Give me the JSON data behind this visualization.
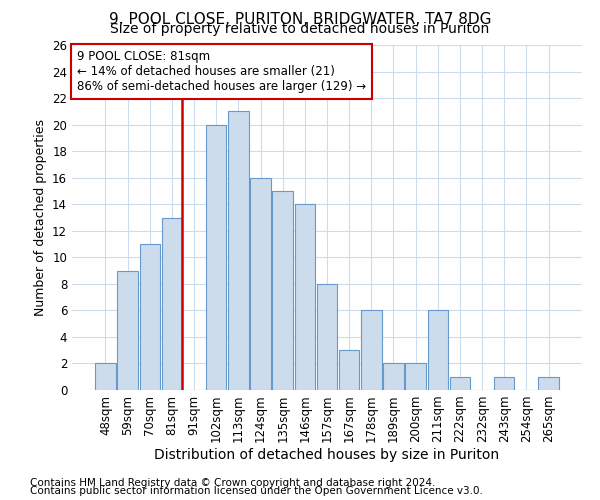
{
  "title1": "9, POOL CLOSE, PURITON, BRIDGWATER, TA7 8DG",
  "title2": "Size of property relative to detached houses in Puriton",
  "xlabel": "Distribution of detached houses by size in Puriton",
  "ylabel": "Number of detached properties",
  "categories": [
    "48sqm",
    "59sqm",
    "70sqm",
    "81sqm",
    "91sqm",
    "102sqm",
    "113sqm",
    "124sqm",
    "135sqm",
    "146sqm",
    "157sqm",
    "167sqm",
    "178sqm",
    "189sqm",
    "200sqm",
    "211sqm",
    "222sqm",
    "232sqm",
    "243sqm",
    "254sqm",
    "265sqm"
  ],
  "values": [
    2,
    9,
    11,
    13,
    0,
    20,
    21,
    16,
    15,
    14,
    8,
    3,
    6,
    2,
    2,
    6,
    1,
    0,
    1,
    0,
    1
  ],
  "bar_color": "#ccdcec",
  "bar_edge_color": "#6699cc",
  "property_line_index": 3,
  "property_line_color": "#cc0000",
  "annotation_line1": "9 POOL CLOSE: 81sqm",
  "annotation_line2": "← 14% of detached houses are smaller (21)",
  "annotation_line3": "86% of semi-detached houses are larger (129) →",
  "annotation_box_color": "#ffffff",
  "annotation_box_edge": "#cc0000",
  "ylim": [
    0,
    26
  ],
  "yticks": [
    0,
    2,
    4,
    6,
    8,
    10,
    12,
    14,
    16,
    18,
    20,
    22,
    24,
    26
  ],
  "footer1": "Contains HM Land Registry data © Crown copyright and database right 2024.",
  "footer2": "Contains public sector information licensed under the Open Government Licence v3.0.",
  "bg_color": "#ffffff",
  "plot_bg_color": "#ffffff",
  "grid_color": "#ccdcec",
  "title1_fontsize": 11,
  "title2_fontsize": 10,
  "xlabel_fontsize": 10,
  "ylabel_fontsize": 9,
  "tick_fontsize": 8.5,
  "annotation_fontsize": 8.5,
  "footer_fontsize": 7.5
}
